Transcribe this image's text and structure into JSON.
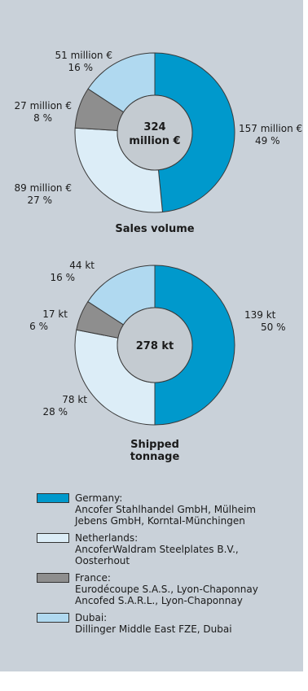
{
  "colors": {
    "Germany": "#0099cc",
    "Netherlands": "#dcedf7",
    "France": "#8e8e8e",
    "Dubai": "#b0d9f0",
    "center": "#c4cbd1",
    "background": "#c9d1d9"
  },
  "chart_data": [
    {
      "type": "pie",
      "title": "Sales volume",
      "center_label": [
        "324",
        "million €"
      ],
      "slices": [
        {
          "category": "Germany",
          "value": 157,
          "label": "157 million €",
          "percent": "49 %"
        },
        {
          "category": "Netherlands",
          "value": 89,
          "label": "89 million €",
          "percent": "27 %"
        },
        {
          "category": "France",
          "value": 27,
          "label": "27 million €",
          "percent": "8 %"
        },
        {
          "category": "Dubai",
          "value": 51,
          "label": "51 million €",
          "percent": "16 %"
        }
      ]
    },
    {
      "type": "pie",
      "title": "Shipped tonnage",
      "center_label": [
        "278 kt"
      ],
      "slices": [
        {
          "category": "Germany",
          "value": 139,
          "label": "139 kt",
          "percent": "50 %"
        },
        {
          "category": "Netherlands",
          "value": 78,
          "label": "78 kt",
          "percent": "28 %"
        },
        {
          "category": "France",
          "value": 17,
          "label": "17 kt",
          "percent": "6 %"
        },
        {
          "category": "Dubai",
          "value": 44,
          "label": "44 kt",
          "percent": "16 %"
        }
      ]
    }
  ],
  "legend": [
    {
      "key": "Germany",
      "name": "Germany:",
      "lines": [
        "Ancofer Stahlhandel GmbH, Mülheim",
        "Jebens GmbH, Korntal-Münchingen"
      ]
    },
    {
      "key": "Netherlands",
      "name": "Netherlands:",
      "lines": [
        "AncoferWaldram Steelplates B.V.,",
        "Oosterhout"
      ]
    },
    {
      "key": "France",
      "name": "France:",
      "lines": [
        "Eurodécoupe S.A.S., Lyon-Chaponnay",
        "Ancofed S.A.R.L., Lyon-Chaponnay"
      ]
    },
    {
      "key": "Dubai",
      "name": "Dubai:",
      "lines": [
        "Dillinger Middle East FZE, Dubai"
      ]
    }
  ]
}
